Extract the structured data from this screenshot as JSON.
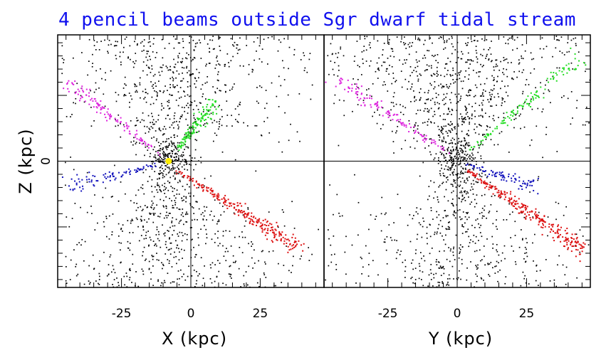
{
  "chart_data": {
    "type": "scatter",
    "title": "4 pencil beams outside Sgr dwarf tidal stream",
    "colors": {
      "background_stars": "#000000",
      "green_beam": "#22dd22",
      "magenta_beam": "#dd22dd",
      "blue_beam": "#1111bb",
      "red_beam": "#dd1111",
      "sun_marker": "#ffee00",
      "title": "#1010ee"
    },
    "panels": [
      {
        "xlabel": "X (kpc)",
        "ylabel": "Z (kpc)",
        "xlim": [
          -48,
          48
        ],
        "ylim": [
          -48,
          48
        ],
        "xticks": [
          -25,
          0,
          25
        ],
        "xtick_labels": [
          "-25",
          "0",
          "25"
        ],
        "yticks": [
          0
        ],
        "ytick_labels": [
          "0"
        ],
        "sun_marker": {
          "x": -8,
          "z": 0
        },
        "beams": [
          {
            "color": "green",
            "from": [
              -6,
              3
            ],
            "to": [
              8,
              23
            ],
            "n": 130
          },
          {
            "color": "magenta",
            "from": [
              -12,
              3
            ],
            "to": [
              -44,
              30
            ],
            "n": 110
          },
          {
            "color": "blue",
            "from": [
              -12,
              -1
            ],
            "to": [
              -44,
              -9
            ],
            "n": 80
          },
          {
            "color": "red",
            "from": [
              -6,
              -3
            ],
            "to": [
              38,
              -32
            ],
            "n": 240
          }
        ]
      },
      {
        "xlabel": "Y (kpc)",
        "ylabel": "",
        "xlim": [
          -48,
          48
        ],
        "ylim": [
          -48,
          48
        ],
        "xticks": [
          -25,
          0,
          25
        ],
        "xtick_labels": [
          "-25",
          "0",
          "25"
        ],
        "yticks": [
          0
        ],
        "ytick_labels": [],
        "beams": [
          {
            "color": "green",
            "from": [
              4,
              4
            ],
            "to": [
              44,
              40
            ],
            "n": 120
          },
          {
            "color": "magenta",
            "from": [
              -3,
              3
            ],
            "to": [
              -44,
              32
            ],
            "n": 120
          },
          {
            "color": "blue",
            "from": [
              3,
              -1
            ],
            "to": [
              28,
              -9
            ],
            "n": 80
          },
          {
            "color": "red",
            "from": [
              3,
              -3
            ],
            "to": [
              46,
              -34
            ],
            "n": 260
          }
        ]
      }
    ]
  }
}
